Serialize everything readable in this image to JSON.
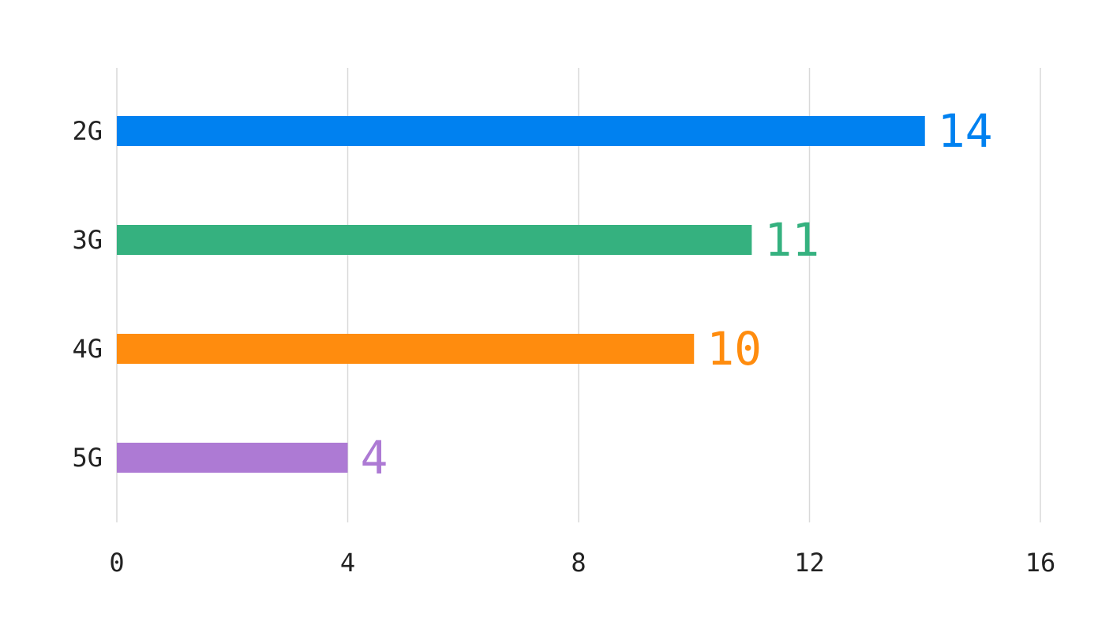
{
  "chart_data": {
    "type": "bar",
    "orientation": "horizontal",
    "categories": [
      "2G",
      "3G",
      "4G",
      "5G"
    ],
    "values": [
      14,
      11,
      10,
      4
    ],
    "colors": [
      "#0081f0",
      "#35b17f",
      "#ff8c0e",
      "#ad7ad4"
    ],
    "xlim": [
      0,
      16
    ],
    "x_ticks": [
      0,
      4,
      8,
      12,
      16
    ],
    "tick_labels": [
      "0",
      "4",
      "8",
      "12",
      "16"
    ],
    "title": "",
    "xlabel": "",
    "ylabel": "",
    "grid": true,
    "legend": "none",
    "data_labels": true
  }
}
